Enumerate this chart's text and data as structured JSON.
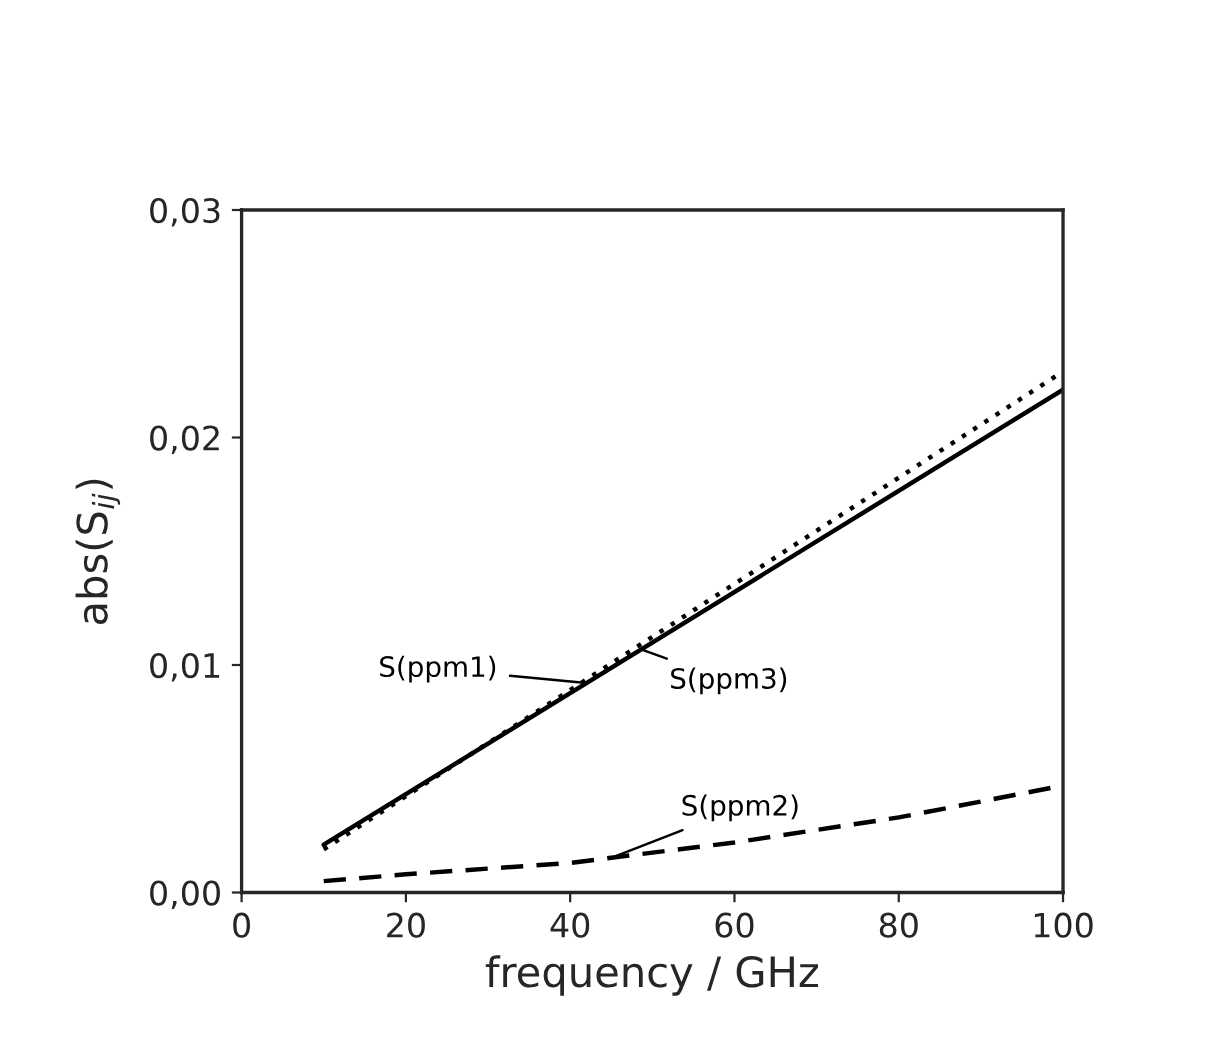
{
  "chart_data": {
    "type": "line",
    "xlabel": "frequency / GHz",
    "ylabel": "abs(S$_{ij}$)",
    "series": [
      {
        "name": "S(ppm1)",
        "color": "#000000",
        "line_style": "solid",
        "x": [
          10,
          100
        ],
        "values": [
          0.0021,
          0.0221
        ]
      },
      {
        "name": "S(ppm3)",
        "color": "#000000",
        "line_style": "dotted",
        "x": [
          10,
          100
        ],
        "values": [
          0.0019,
          0.0229
        ]
      },
      {
        "name": "S(ppm2)",
        "color": "#000000",
        "line_style": "dashed",
        "x": [
          10,
          20,
          40,
          60,
          80,
          100
        ],
        "values": [
          0.0005,
          0.0008,
          0.0013,
          0.0022,
          0.0033,
          0.0047
        ]
      }
    ],
    "xlim": [
      0,
      100
    ],
    "xticks": [
      0,
      20,
      40,
      60,
      80,
      100
    ],
    "ylim": [
      0,
      0.03
    ],
    "yticks": [
      {
        "value": 0,
        "label": "0,00"
      },
      {
        "value": 0.01,
        "label": "0,01"
      },
      {
        "value": 0.02,
        "label": "0,02"
      },
      {
        "value": 0.03,
        "label": "0,03"
      }
    ],
    "grid": false
  }
}
